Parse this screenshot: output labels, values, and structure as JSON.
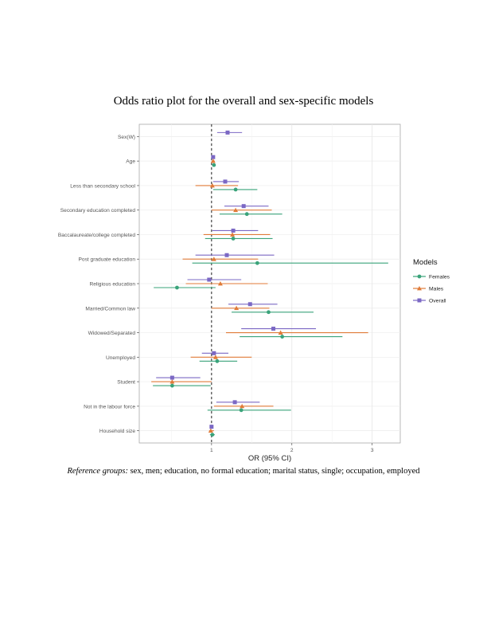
{
  "page": {
    "title": "Odds ratio plot for the overall and sex-specific models",
    "caption_lead": "Reference groups:",
    "caption_rest": " sex, men; education, no formal education; marital status, single; occupation, employed"
  },
  "chart_data": {
    "type": "forest",
    "title": "Odds ratio plot for the overall and sex-specific models",
    "xlabel": "OR (95% CI)",
    "ylabel": "",
    "xlim": [
      0.1,
      3.35
    ],
    "x_ticks": [
      "1",
      "2",
      "3"
    ],
    "reference_line": 1,
    "grid": true,
    "legend": {
      "title": "Models",
      "position": "right"
    },
    "categories": [
      "Sex(W)",
      "Age",
      "Less than secondary school",
      "Secondary education completed",
      "Baccalaureate/college completed",
      "Post graduate education",
      "Religious education",
      "Married/Common law",
      "Widowed/Separated",
      "Unemployed",
      "Student",
      "Not in the labour force",
      "Household size"
    ],
    "series": [
      {
        "name": "Females",
        "color": "#3aa37a",
        "marker": "circle",
        "or": [
          null,
          1.03,
          1.3,
          1.44,
          1.27,
          1.57,
          0.57,
          1.71,
          1.88,
          1.07,
          0.51,
          1.37,
          1.01
        ],
        "lo": [
          null,
          1.01,
          1.02,
          1.1,
          0.92,
          0.76,
          0.28,
          1.25,
          1.35,
          0.85,
          0.27,
          0.95,
          0.98
        ],
        "hi": [
          null,
          1.05,
          1.57,
          1.88,
          1.76,
          3.2,
          1.05,
          2.27,
          2.63,
          1.32,
          0.99,
          1.99,
          1.04
        ]
      },
      {
        "name": "Males",
        "color": "#e07b39",
        "marker": "triangle",
        "or": [
          null,
          1.02,
          1.01,
          1.3,
          1.26,
          1.03,
          1.11,
          1.31,
          1.86,
          1.05,
          0.51,
          1.38,
          0.99
        ],
        "lo": [
          null,
          1.0,
          0.8,
          1.0,
          0.9,
          0.64,
          0.68,
          1.0,
          1.18,
          0.74,
          0.25,
          1.03,
          0.97
        ],
        "hi": [
          null,
          1.04,
          1.33,
          1.75,
          1.73,
          1.58,
          1.7,
          1.72,
          2.95,
          1.5,
          1.0,
          1.77,
          1.03
        ]
      },
      {
        "name": "Overall",
        "color": "#7b68c4",
        "marker": "square",
        "or": [
          1.2,
          1.02,
          1.17,
          1.4,
          1.27,
          1.19,
          0.97,
          1.48,
          1.77,
          1.03,
          0.51,
          1.29,
          1.0
        ],
        "lo": [
          1.07,
          1.0,
          1.02,
          1.16,
          1.01,
          0.8,
          0.7,
          1.21,
          1.37,
          0.88,
          0.31,
          1.06,
          0.98
        ],
        "hi": [
          1.38,
          1.04,
          1.34,
          1.71,
          1.58,
          1.78,
          1.37,
          1.82,
          2.3,
          1.21,
          0.86,
          1.6,
          1.02
        ]
      }
    ]
  }
}
